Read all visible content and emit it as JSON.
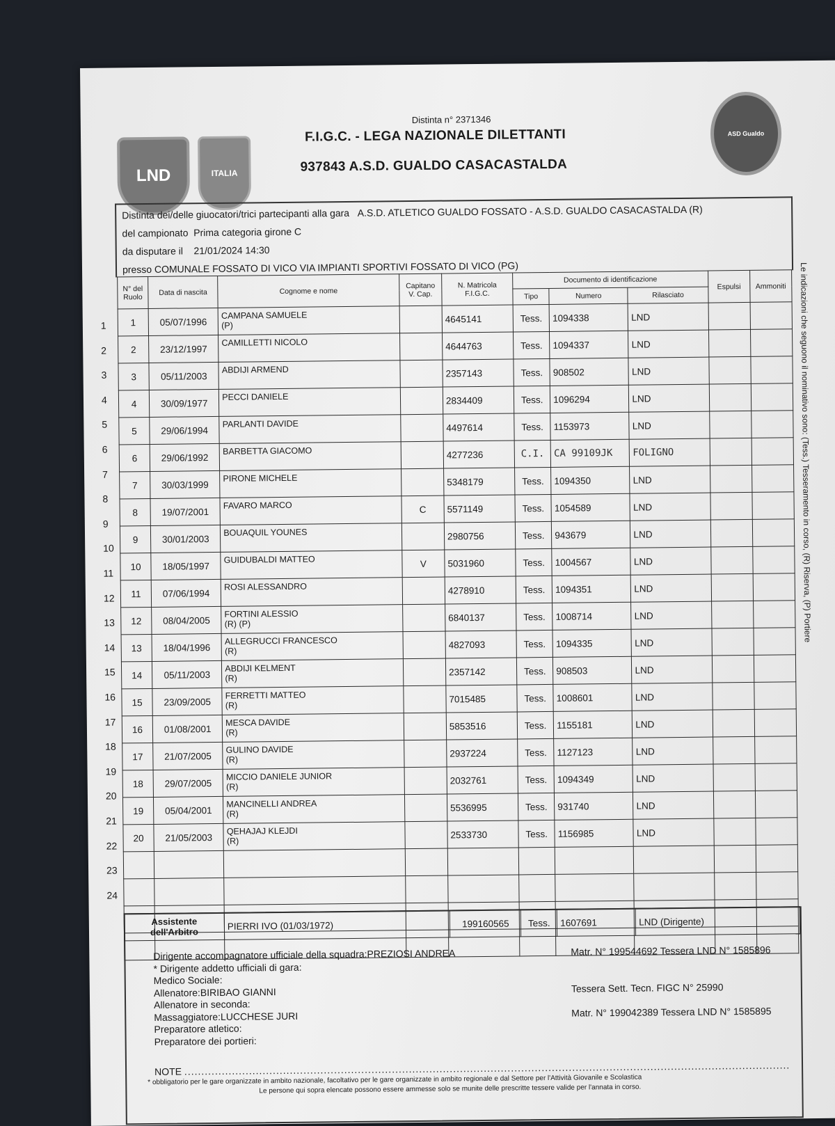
{
  "header": {
    "distinta": "Distinta n° 2371346",
    "title": "F.I.G.C. - LEGA NAZIONALE DILETTANTI",
    "club": "937843 A.S.D. GUALDO CASACASTALDA",
    "logos": {
      "lnd": "LND",
      "italia": "ITALIA",
      "club": "ASD Gualdo Casacastalda"
    }
  },
  "info": {
    "gara_label": "Distinta dei/delle giuocatori/trici partecipanti alla gara",
    "gara": "A.S.D. ATLETICO GUALDO FOSSATO - A.S.D. GUALDO CASACASTALDA (R)",
    "campionato_label": "del campionato",
    "campionato": "Prima categoria girone C",
    "data_label": "da disputare il",
    "data": "21/01/2024 14:30",
    "presso_label": "presso",
    "presso": "COMUNALE FOSSATO DI VICO VIA IMPIANTI SPORTIVI FOSSATO DI VICO (PG)"
  },
  "columns": {
    "ruolo": "N° del Ruolo",
    "nascita": "Data di nascita",
    "nome": "Cognome e nome",
    "capitano": "Capitano V. Cap.",
    "matricola": "N. Matricola F.I.G.C.",
    "documento": "Documento di identificazione",
    "tipo": "Tipo",
    "numero": "Numero",
    "rilasciato": "Rilasciato",
    "espulsi": "Espulsi",
    "ammoniti": "Ammoniti"
  },
  "players": [
    {
      "n": "1",
      "nascita": "05/07/1996",
      "nome": "CAMPANA SAMUELE",
      "note": "(P)",
      "cap": "",
      "matricola": "4645141",
      "tipo": "Tess.",
      "numero": "1094338",
      "rilasciato": "LND"
    },
    {
      "n": "2",
      "nascita": "23/12/1997",
      "nome": "CAMILLETTI NICOLO",
      "note": "",
      "cap": "",
      "matricola": "4644763",
      "tipo": "Tess.",
      "numero": "1094337",
      "rilasciato": "LND"
    },
    {
      "n": "3",
      "nascita": "05/11/2003",
      "nome": "ABDIJI ARMEND",
      "note": "",
      "cap": "",
      "matricola": "2357143",
      "tipo": "Tess.",
      "numero": "908502",
      "rilasciato": "LND"
    },
    {
      "n": "4",
      "nascita": "30/09/1977",
      "nome": "PECCI DANIELE",
      "note": "",
      "cap": "",
      "matricola": "2834409",
      "tipo": "Tess.",
      "numero": "1096294",
      "rilasciato": "LND"
    },
    {
      "n": "5",
      "nascita": "29/06/1994",
      "nome": "PARLANTI DAVIDE",
      "note": "",
      "cap": "",
      "matricola": "4497614",
      "tipo": "Tess.",
      "numero": "1153973",
      "rilasciato": "LND"
    },
    {
      "n": "6",
      "nascita": "29/06/1992",
      "nome": "BARBETTA GIACOMO",
      "note": "",
      "cap": "",
      "matricola": "4277236",
      "tipo": "C.I.",
      "numero": "CA 99109JK",
      "rilasciato": "FOLIGNO",
      "hand": true
    },
    {
      "n": "7",
      "nascita": "30/03/1999",
      "nome": "PIRONE MICHELE",
      "note": "",
      "cap": "",
      "matricola": "5348179",
      "tipo": "Tess.",
      "numero": "1094350",
      "rilasciato": "LND"
    },
    {
      "n": "8",
      "nascita": "19/07/2001",
      "nome": "FAVARO MARCO",
      "note": "",
      "cap": "C",
      "matricola": "5571149",
      "tipo": "Tess.",
      "numero": "1054589",
      "rilasciato": "LND"
    },
    {
      "n": "9",
      "nascita": "30/01/2003",
      "nome": "BOUAQUIL YOUNES",
      "note": "",
      "cap": "",
      "matricola": "2980756",
      "tipo": "Tess.",
      "numero": "943679",
      "rilasciato": "LND"
    },
    {
      "n": "10",
      "nascita": "18/05/1997",
      "nome": "GUIDUBALDI MATTEO",
      "note": "",
      "cap": "V",
      "matricola": "5031960",
      "tipo": "Tess.",
      "numero": "1004567",
      "rilasciato": "LND"
    },
    {
      "n": "11",
      "nascita": "07/06/1994",
      "nome": "ROSI ALESSANDRO",
      "note": "",
      "cap": "",
      "matricola": "4278910",
      "tipo": "Tess.",
      "numero": "1094351",
      "rilasciato": "LND"
    },
    {
      "n": "12",
      "nascita": "08/04/2005",
      "nome": "FORTINI ALESSIO",
      "note": "(R) (P)",
      "cap": "",
      "matricola": "6840137",
      "tipo": "Tess.",
      "numero": "1008714",
      "rilasciato": "LND"
    },
    {
      "n": "13",
      "nascita": "18/04/1996",
      "nome": "ALLEGRUCCI FRANCESCO",
      "note": "(R)",
      "cap": "",
      "matricola": "4827093",
      "tipo": "Tess.",
      "numero": "1094335",
      "rilasciato": "LND"
    },
    {
      "n": "14",
      "nascita": "05/11/2003",
      "nome": "ABDIJI KELMENT",
      "note": "(R)",
      "cap": "",
      "matricola": "2357142",
      "tipo": "Tess.",
      "numero": "908503",
      "rilasciato": "LND"
    },
    {
      "n": "15",
      "nascita": "23/09/2005",
      "nome": "FERRETTI MATTEO",
      "note": "(R)",
      "cap": "",
      "matricola": "7015485",
      "tipo": "Tess.",
      "numero": "1008601",
      "rilasciato": "LND"
    },
    {
      "n": "16",
      "nascita": "01/08/2001",
      "nome": "MESCA DAVIDE",
      "note": "(R)",
      "cap": "",
      "matricola": "5853516",
      "tipo": "Tess.",
      "numero": "1155181",
      "rilasciato": "LND"
    },
    {
      "n": "17",
      "nascita": "21/07/2005",
      "nome": "GULINO DAVIDE",
      "note": "(R)",
      "cap": "",
      "matricola": "2937224",
      "tipo": "Tess.",
      "numero": "1127123",
      "rilasciato": "LND"
    },
    {
      "n": "18",
      "nascita": "29/07/2005",
      "nome": "MICCIO DANIELE JUNIOR",
      "note": "(R)",
      "cap": "",
      "matricola": "2032761",
      "tipo": "Tess.",
      "numero": "1094349",
      "rilasciato": "LND"
    },
    {
      "n": "19",
      "nascita": "05/04/2001",
      "nome": "MANCINELLI ANDREA",
      "note": "(R)",
      "cap": "",
      "matricola": "5536995",
      "tipo": "Tess.",
      "numero": "931740",
      "rilasciato": "LND"
    },
    {
      "n": "20",
      "nascita": "21/05/2003",
      "nome": "QEHAJAJ KLEJDI",
      "note": "(R)",
      "cap": "",
      "matricola": "2533730",
      "tipo": "Tess.",
      "numero": "1156985",
      "rilasciato": "LND"
    }
  ],
  "row_numbers": [
    "1",
    "2",
    "3",
    "4",
    "5",
    "6",
    "7",
    "8",
    "9",
    "10",
    "11",
    "12",
    "13",
    "14",
    "15",
    "16",
    "17",
    "18",
    "19",
    "20",
    "21",
    "22",
    "23",
    "24"
  ],
  "assistente": {
    "label": "Assistente dell'Arbitro",
    "nome": "PIERRI IVO (01/03/1972)",
    "matricola": "199160565",
    "tipo": "Tess.",
    "numero": "1607691",
    "rilasciato": "LND   (Dirigente)"
  },
  "staff": [
    {
      "left": "Dirigente accompagnatore ufficiale della squadra:PREZIOSI ANDREA",
      "right": "Matr. N° 199544692 Tessera LND N° 1585896"
    },
    {
      "left": "* Dirigente addetto ufficiali di gara:",
      "right": ""
    },
    {
      "left": "Medico Sociale:",
      "right": ""
    },
    {
      "left": "Allenatore:BIRIBAO GIANNI",
      "right": "Tessera Sett. Tecn. FIGC N° 25990"
    },
    {
      "left": "Allenatore in seconda:",
      "right": ""
    },
    {
      "left": "Massaggiatore:LUCCHESE JURI",
      "right": "Matr. N° 199042389 Tessera LND N° 1585895"
    },
    {
      "left": "Preparatore atletico:",
      "right": ""
    },
    {
      "left": "Preparatore dei portieri:",
      "right": ""
    }
  ],
  "note_label": "NOTE",
  "footnote1": "* obbligatorio per le gare organizzate in ambito nazionale, facoltativo per le gare organizzate in ambito regionale e dal Settore per l'Attività Giovanile e Scolastica",
  "footnote2": "Le persone qui sopra elencate possono essere ammesse solo se munite delle prescritte tessere valide per l'annata in corso.",
  "side_note": "Le indicazioni che seguono il nominativo sono: (Tess.) Tesseramento in corso, (R) Riserva, (P) Portiere"
}
